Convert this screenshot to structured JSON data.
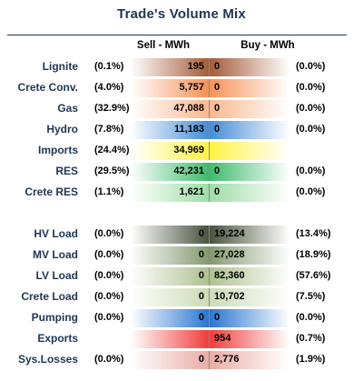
{
  "title": "Trade's Volume Mix",
  "headers": {
    "sell": "Sell - MWh",
    "buy": "Buy - MWh"
  },
  "rows": [
    {
      "label": "Lignite",
      "sell_pct": "(0.1%)",
      "sell_val": "195",
      "buy_val": "0",
      "buy_pct": "(0.0%)",
      "sell_color": "#a0522d",
      "buy_color": "#a0522d"
    },
    {
      "label": "Crete Conv.",
      "sell_pct": "(4.0%)",
      "sell_val": "5,757",
      "buy_val": "0",
      "buy_pct": "(0.0%)",
      "sell_color": "#f48c4e",
      "buy_color": "#f48c4e"
    },
    {
      "label": "Gas",
      "sell_pct": "(32.9%)",
      "sell_val": "47,088",
      "buy_val": "0",
      "buy_pct": "(0.0%)",
      "sell_color": "#f9b48a",
      "buy_color": "#f9b48a"
    },
    {
      "label": "Hydro",
      "sell_pct": "(7.8%)",
      "sell_val": "11,183",
      "buy_val": "0",
      "buy_pct": "(0.0%)",
      "sell_color": "#3a86d4",
      "buy_color": "#3a86d4"
    },
    {
      "label": "Imports",
      "sell_pct": "(24.4%)",
      "sell_val": "34,969",
      "buy_val": "",
      "buy_pct": "",
      "sell_color": "#fff23a",
      "buy_color": "#fff23a"
    },
    {
      "label": "RES",
      "sell_pct": "(29.5%)",
      "sell_val": "42,231",
      "buy_val": "0",
      "buy_pct": "(0.0%)",
      "sell_color": "#34b864",
      "buy_color": "#34b864"
    },
    {
      "label": "Crete RES",
      "sell_pct": "(1.1%)",
      "sell_val": "1,621",
      "buy_val": "0",
      "buy_pct": "(0.0%)",
      "sell_color": "#98dca0",
      "buy_color": "#98dca0"
    },
    {
      "label": "HV Load",
      "sell_pct": "(0.0%)",
      "sell_val": "0",
      "buy_val": "19,224",
      "buy_pct": "(13.4%)",
      "sell_color": "#3f4a32",
      "buy_color": "#3f4a32"
    },
    {
      "label": "MV Load",
      "sell_pct": "(0.0%)",
      "sell_val": "0",
      "buy_val": "27,028",
      "buy_pct": "(18.9%)",
      "sell_color": "#7d9467",
      "buy_color": "#7d9467"
    },
    {
      "label": "LV Load",
      "sell_pct": "(0.0%)",
      "sell_val": "0",
      "buy_val": "82,360",
      "buy_pct": "(57.6%)",
      "sell_color": "#a9be8c",
      "buy_color": "#a9be8c"
    },
    {
      "label": "Crete Load",
      "sell_pct": "(0.0%)",
      "sell_val": "0",
      "buy_val": "10,702",
      "buy_pct": "(7.5%)",
      "sell_color": "#c9d9b3",
      "buy_color": "#c9d9b3"
    },
    {
      "label": "Pumping",
      "sell_pct": "(0.0%)",
      "sell_val": "0",
      "buy_val": "0",
      "buy_pct": "(0.0%)",
      "sell_color": "#1e6fd0",
      "buy_color": "#1e6fd0"
    },
    {
      "label": "Exports",
      "sell_pct": "",
      "sell_val": "",
      "buy_val": "954",
      "buy_pct": "(0.7%)",
      "sell_color": "#f03232",
      "buy_color": "#f03232"
    },
    {
      "label": "Sys.Losses",
      "sell_pct": "(0.0%)",
      "sell_val": "0",
      "buy_val": "2,776",
      "buy_pct": "(1.9%)",
      "sell_color": "#e9a8a0",
      "buy_color": "#e9a8a0"
    }
  ]
}
